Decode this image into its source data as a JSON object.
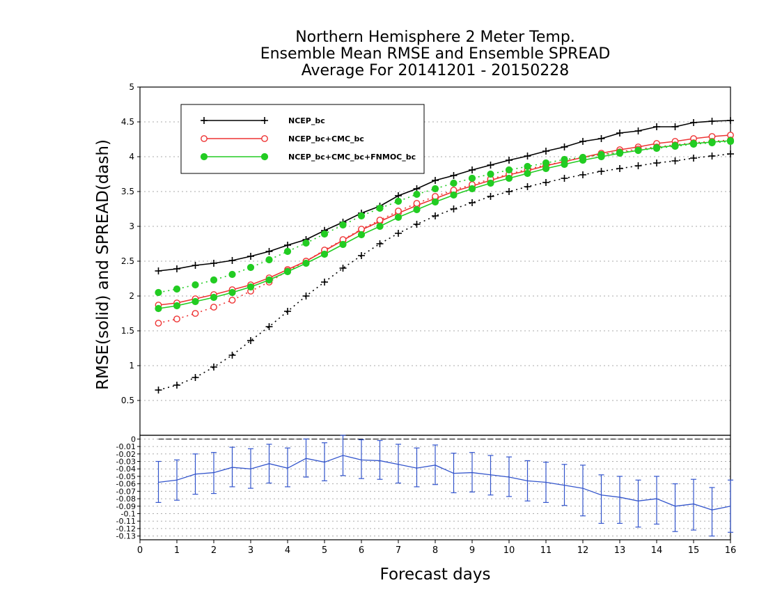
{
  "chart_data": [
    {
      "type": "line",
      "title_lines": [
        "Northern Hemisphere 2 Meter Temp.",
        "Ensemble Mean RMSE and Ensemble SPREAD",
        "Average For 20141201 - 20150228"
      ],
      "ylabel": "RMSE(solid) and SPREAD(dash)",
      "xlim": [
        0,
        16
      ],
      "ylim": [
        0,
        5
      ],
      "yticks": [
        "0.5",
        "1",
        "1.5",
        "2",
        "2.5",
        "3",
        "3.5",
        "4",
        "4.5",
        "5"
      ],
      "y_tick_values": [
        0.5,
        1,
        1.5,
        2,
        2.5,
        3,
        3.5,
        4,
        4.5,
        5
      ],
      "grid": "horizontal dotted",
      "legend_position": "top-left",
      "x": [
        0.5,
        1,
        1.5,
        2,
        2.5,
        3,
        3.5,
        4,
        4.5,
        5,
        5.5,
        6,
        6.5,
        7,
        7.5,
        8,
        8.5,
        9,
        9.5,
        10,
        10.5,
        11,
        11.5,
        12,
        12.5,
        13,
        13.5,
        14,
        14.5,
        15,
        15.5,
        16
      ],
      "series": [
        {
          "name": "NCEP_bc",
          "color": "#000000",
          "marker": "plus",
          "rmse": [
            2.36,
            2.39,
            2.44,
            2.47,
            2.51,
            2.57,
            2.64,
            2.73,
            2.81,
            2.94,
            3.06,
            3.19,
            3.29,
            3.44,
            3.54,
            3.66,
            3.73,
            3.81,
            3.88,
            3.95,
            4.01,
            4.08,
            4.14,
            4.22,
            4.26,
            4.34,
            4.37,
            4.43,
            4.43,
            4.49,
            4.51,
            4.52
          ],
          "spread": [
            0.65,
            0.72,
            0.83,
            0.98,
            1.15,
            1.36,
            1.56,
            1.78,
            2.0,
            2.2,
            2.4,
            2.58,
            2.75,
            2.9,
            3.03,
            3.15,
            3.25,
            3.34,
            3.43,
            3.5,
            3.57,
            3.63,
            3.69,
            3.74,
            3.79,
            3.83,
            3.87,
            3.91,
            3.94,
            3.98,
            4.01,
            4.04
          ]
        },
        {
          "name": "NCEP_bc+CMC_bc",
          "color": "#ee3333",
          "marker": "open-circle",
          "rmse": [
            1.87,
            1.9,
            1.96,
            2.02,
            2.09,
            2.16,
            2.26,
            2.38,
            2.5,
            2.65,
            2.8,
            2.95,
            3.07,
            3.19,
            3.3,
            3.4,
            3.5,
            3.58,
            3.66,
            3.74,
            3.8,
            3.87,
            3.93,
            3.99,
            4.05,
            4.1,
            4.14,
            4.19,
            4.22,
            4.26,
            4.29,
            4.31
          ],
          "spread": [
            1.61,
            1.67,
            1.75,
            1.84,
            1.94,
            2.07,
            2.2,
            2.36,
            2.5,
            2.66,
            2.81,
            2.96,
            3.09,
            3.22,
            3.33,
            3.43,
            3.52,
            3.6,
            3.68,
            3.75,
            3.82,
            3.88,
            3.93,
            3.99,
            4.03,
            4.07,
            4.11,
            4.14,
            4.17,
            4.2,
            4.22,
            4.24
          ]
        },
        {
          "name": "NCEP_bc+CMC_bc+FNMOC_bc",
          "color": "#22cc22",
          "marker": "filled-circle",
          "rmse": [
            1.82,
            1.86,
            1.92,
            1.98,
            2.05,
            2.13,
            2.23,
            2.35,
            2.47,
            2.6,
            2.74,
            2.88,
            3.0,
            3.13,
            3.24,
            3.35,
            3.45,
            3.54,
            3.62,
            3.69,
            3.76,
            3.83,
            3.89,
            3.95,
            4.0,
            4.05,
            4.09,
            4.13,
            4.16,
            4.19,
            4.21,
            4.23
          ],
          "spread": [
            2.05,
            2.1,
            2.16,
            2.23,
            2.31,
            2.41,
            2.52,
            2.64,
            2.76,
            2.89,
            3.02,
            3.15,
            3.26,
            3.36,
            3.46,
            3.54,
            3.62,
            3.69,
            3.75,
            3.81,
            3.86,
            3.91,
            3.96,
            3.99,
            4.03,
            4.06,
            4.09,
            4.12,
            4.15,
            4.18,
            4.2,
            4.22
          ]
        }
      ]
    },
    {
      "type": "line",
      "xlabel": "Forecast days",
      "xlim": [
        0,
        16
      ],
      "xticks": [
        "0",
        "1",
        "2",
        "3",
        "4",
        "5",
        "6",
        "7",
        "8",
        "9",
        "10",
        "11",
        "12",
        "13",
        "14",
        "15",
        "16"
      ],
      "x_tick_values": [
        0,
        1,
        2,
        3,
        4,
        5,
        6,
        7,
        8,
        9,
        10,
        11,
        12,
        13,
        14,
        15,
        16
      ],
      "ylim": [
        -0.135,
        0.005
      ],
      "yticks": [
        "0",
        "-0.01",
        "-0.02",
        "-0.03",
        "-0.04",
        "-0.05",
        "-0.06",
        "-0.07",
        "-0.08",
        "-0.09",
        "-0.1",
        "-0.11",
        "-0.12",
        "-0.13"
      ],
      "y_tick_values": [
        0,
        -0.01,
        -0.02,
        -0.03,
        -0.04,
        -0.05,
        -0.06,
        -0.07,
        -0.08,
        -0.09,
        -0.1,
        -0.11,
        -0.12,
        -0.13
      ],
      "grid": "horizontal dotted",
      "reference_line": 0,
      "error_bars": true,
      "x": [
        0.5,
        1,
        1.5,
        2,
        2.5,
        3,
        3.5,
        4,
        4.5,
        5,
        5.5,
        6,
        6.5,
        7,
        7.5,
        8,
        8.5,
        9,
        9.5,
        10,
        10.5,
        11,
        11.5,
        12,
        12.5,
        13,
        13.5,
        14,
        14.5,
        15,
        15.5,
        16
      ],
      "series": [
        {
          "color": "#3355cc",
          "values": [
            -0.058,
            -0.055,
            -0.047,
            -0.045,
            -0.038,
            -0.04,
            -0.033,
            -0.039,
            -0.026,
            -0.031,
            -0.022,
            -0.028,
            -0.029,
            -0.034,
            -0.039,
            -0.035,
            -0.046,
            -0.045,
            -0.048,
            -0.051,
            -0.056,
            -0.058,
            -0.062,
            -0.066,
            -0.075,
            -0.078,
            -0.083,
            -0.08,
            -0.09,
            -0.087,
            -0.095,
            -0.09
          ],
          "lower": [
            -0.085,
            -0.082,
            -0.074,
            -0.073,
            -0.064,
            -0.066,
            -0.059,
            -0.064,
            -0.051,
            -0.056,
            -0.049,
            -0.053,
            -0.054,
            -0.059,
            -0.064,
            -0.061,
            -0.072,
            -0.071,
            -0.075,
            -0.077,
            -0.083,
            -0.085,
            -0.089,
            -0.103,
            -0.113,
            -0.113,
            -0.118,
            -0.114,
            -0.124,
            -0.122,
            -0.13,
            -0.125
          ],
          "upper": [
            -0.03,
            -0.028,
            -0.02,
            -0.018,
            -0.011,
            -0.013,
            -0.007,
            -0.012,
            0.0,
            -0.005,
            0.005,
            -0.001,
            -0.002,
            -0.007,
            -0.012,
            -0.008,
            -0.019,
            -0.018,
            -0.022,
            -0.024,
            -0.029,
            -0.031,
            -0.034,
            -0.035,
            -0.048,
            -0.05,
            -0.055,
            -0.05,
            -0.06,
            -0.054,
            -0.065,
            -0.055
          ]
        }
      ]
    }
  ]
}
